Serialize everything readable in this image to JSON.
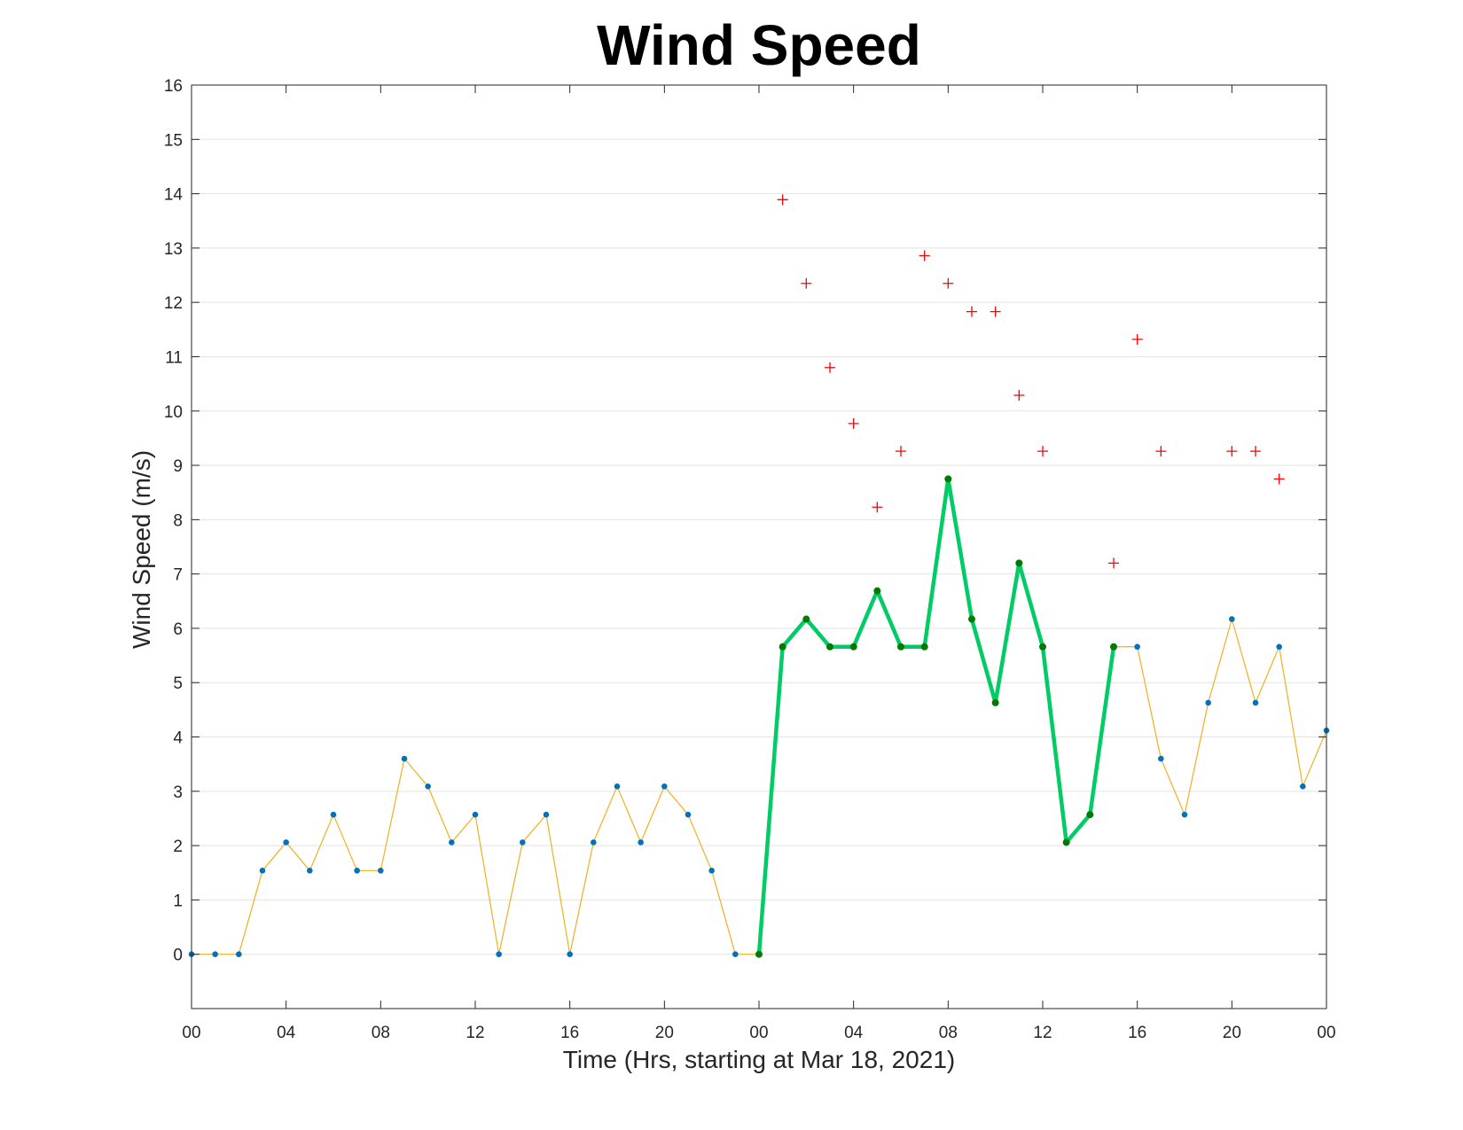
{
  "chart_data": {
    "type": "line",
    "title": "Wind Speed",
    "xlabel": "Time (Hrs, starting at Mar 18, 2021)",
    "ylabel": "Wind Speed (m/s)",
    "xlim": [
      0,
      48
    ],
    "ylim": [
      -1,
      16
    ],
    "grid": "horizontal",
    "x_tick_values": [
      0,
      4,
      8,
      12,
      16,
      20,
      24,
      28,
      32,
      36,
      40,
      44,
      48
    ],
    "x_tick_labels": [
      "00",
      "04",
      "08",
      "12",
      "16",
      "20",
      "00",
      "04",
      "08",
      "12",
      "16",
      "20",
      "00"
    ],
    "y_ticks": [
      0,
      1,
      2,
      3,
      4,
      5,
      6,
      7,
      8,
      9,
      10,
      11,
      12,
      13,
      14,
      15,
      16
    ],
    "colors": {
      "base_line": "#EDB120",
      "base_marker": "#0072BD",
      "highlight_line": "#00CC66",
      "highlight_marker": "#007A00",
      "gust_marker": "#FF0000"
    },
    "series": [
      {
        "style": "thin-line-dots",
        "x": [
          0,
          1,
          2,
          3,
          4,
          5,
          6,
          7,
          8,
          9,
          10,
          11,
          12,
          13,
          14,
          15,
          16,
          17,
          18,
          19,
          20,
          21,
          22,
          23,
          24,
          25,
          26,
          27,
          28,
          29,
          30,
          31,
          32,
          33,
          34,
          35,
          36,
          37,
          38,
          39,
          40,
          41,
          42,
          43,
          44,
          45,
          46,
          47,
          48
        ],
        "values": [
          0,
          0,
          0,
          1.54,
          2.06,
          1.54,
          2.57,
          1.54,
          1.54,
          3.6,
          3.09,
          2.06,
          2.57,
          0,
          2.06,
          2.57,
          0,
          2.06,
          3.09,
          2.06,
          3.09,
          2.57,
          1.54,
          0,
          0,
          5.66,
          6.17,
          5.66,
          5.66,
          6.69,
          5.66,
          5.66,
          8.75,
          6.17,
          4.63,
          7.2,
          5.66,
          2.06,
          2.57,
          5.66,
          5.66,
          3.6,
          2.57,
          4.63,
          6.17,
          4.63,
          5.66,
          3.09,
          4.12
        ]
      },
      {
        "style": "thick-highlight",
        "x": [
          24,
          25,
          26,
          27,
          28,
          29,
          30,
          31,
          32,
          33,
          34,
          35,
          36,
          37,
          38,
          39
        ],
        "values": [
          0,
          5.66,
          6.17,
          5.66,
          5.66,
          6.69,
          5.66,
          5.66,
          8.75,
          6.17,
          4.63,
          7.2,
          5.66,
          2.06,
          2.57,
          5.66
        ]
      },
      {
        "style": "plus-markers",
        "x": [
          25,
          26,
          27,
          28,
          29,
          30,
          31,
          32,
          33,
          34,
          35,
          36,
          39,
          40,
          41,
          44,
          45,
          46
        ],
        "values": [
          13.89,
          12.35,
          10.8,
          9.77,
          8.23,
          9.26,
          12.86,
          12.35,
          11.83,
          11.83,
          10.29,
          9.26,
          7.2,
          11.32,
          9.26,
          9.26,
          9.26,
          8.75
        ]
      }
    ]
  }
}
